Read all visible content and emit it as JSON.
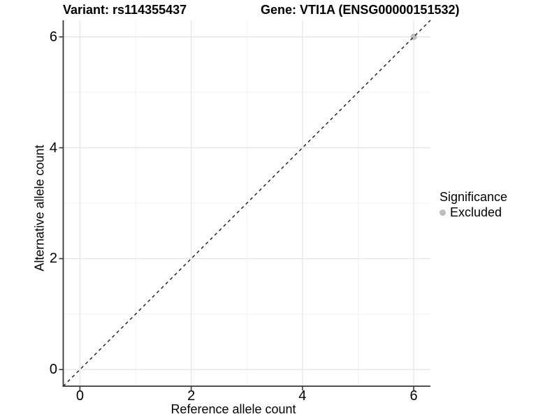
{
  "figure": {
    "title_left": "Variant: rs114355437",
    "title_right": "Gene: VTI1A (ENSG00000151532)"
  },
  "chart_data": {
    "type": "scatter",
    "title": "Variant: rs114355437 | Gene: VTI1A (ENSG00000151532)",
    "xlabel": "Reference allele count",
    "ylabel": "Alternative allele count",
    "xlim": [
      -0.3,
      6.3
    ],
    "ylim": [
      -0.3,
      6.3
    ],
    "x_breaks": [
      0,
      2,
      4,
      6
    ],
    "x_minor_breaks": [
      1,
      3,
      5
    ],
    "y_breaks": [
      0,
      2,
      4,
      6
    ],
    "y_minor_breaks": [
      1,
      3,
      5
    ],
    "grid": true,
    "series": [
      {
        "name": "Excluded",
        "marker": "circle",
        "color": "#bdbdbd",
        "points": [
          [
            6,
            6
          ]
        ]
      }
    ],
    "reference_line": {
      "type": "abline",
      "slope": 1,
      "intercept": 0,
      "style": "dashed",
      "color": "#1a1a1a"
    },
    "legend": {
      "title": "Significance",
      "position": "right",
      "entries": [
        {
          "label": "Excluded",
          "color": "#bdbdbd",
          "marker": "circle"
        }
      ]
    }
  },
  "colors": {
    "background": "#ffffff",
    "axis_line": "#383838",
    "tick_mark": "#383838",
    "grid_major": "#e6e6e6",
    "grid_minor": "#f1f1f1",
    "point_excluded": "#bdbdbd",
    "text": "#000000"
  }
}
